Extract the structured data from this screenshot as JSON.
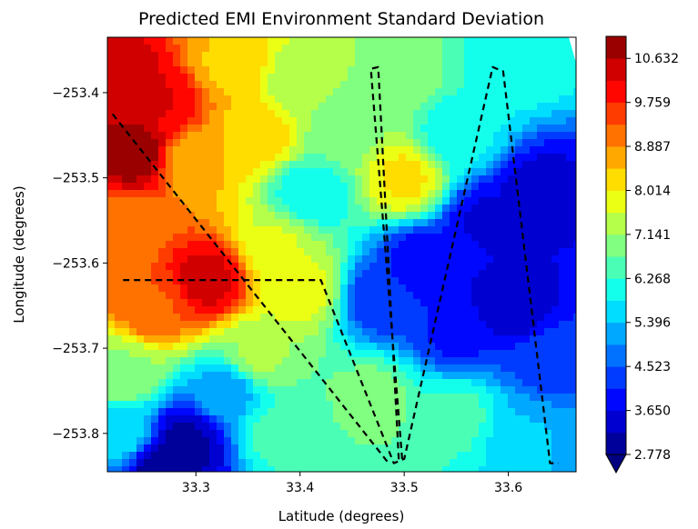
{
  "chart_data": {
    "type": "heatmap",
    "title": "Predicted EMI Environment Standard Deviation",
    "xlabel": "Latitude (degrees)",
    "ylabel": "Longitude (degrees)",
    "xlim": [
      33.215,
      33.665
    ],
    "ylim": [
      -253.845,
      -253.335
    ],
    "x_ticks": [
      {
        "value": 33.3,
        "label": "33.3"
      },
      {
        "value": 33.4,
        "label": "33.4"
      },
      {
        "value": 33.5,
        "label": "33.5"
      },
      {
        "value": 33.6,
        "label": "33.6"
      }
    ],
    "y_ticks": [
      {
        "value": -253.4,
        "label": "−253.4"
      },
      {
        "value": -253.5,
        "label": "−253.5"
      },
      {
        "value": -253.6,
        "label": "−253.6"
      },
      {
        "value": -253.7,
        "label": "−253.7"
      },
      {
        "value": -253.8,
        "label": "−253.8"
      }
    ],
    "colorbar": {
      "min": 2.778,
      "max": 11.069,
      "tick_values": [
        2.778,
        3.65,
        4.523,
        5.396,
        6.268,
        7.141,
        8.014,
        8.887,
        9.759,
        10.632
      ],
      "tick_labels": [
        "2.778",
        "3.650",
        "4.523",
        "5.396",
        "6.268",
        "7.141",
        "8.014",
        "8.887",
        "9.759",
        "10.632"
      ],
      "levels": 19,
      "extend": "min",
      "colormap": "jet"
    },
    "field_sources": [
      {
        "lat": 33.23,
        "lon": -253.39,
        "value": 10.6
      },
      {
        "lat": 33.27,
        "lon": -253.41,
        "value": 10.2
      },
      {
        "lat": 33.24,
        "lon": -253.47,
        "value": 10.9
      },
      {
        "lat": 33.23,
        "lon": -253.56,
        "value": 9.0
      },
      {
        "lat": 33.31,
        "lon": -253.62,
        "value": 10.4
      },
      {
        "lat": 33.26,
        "lon": -253.65,
        "value": 9.3
      },
      {
        "lat": 33.33,
        "lon": -253.37,
        "value": 8.4
      },
      {
        "lat": 33.36,
        "lon": -253.45,
        "value": 8.2
      },
      {
        "lat": 33.38,
        "lon": -253.58,
        "value": 7.6
      },
      {
        "lat": 33.4,
        "lon": -253.63,
        "value": 7.8
      },
      {
        "lat": 33.36,
        "lon": -253.71,
        "value": 7.2
      },
      {
        "lat": 33.41,
        "lon": -253.52,
        "value": 5.9
      },
      {
        "lat": 33.4,
        "lon": -253.39,
        "value": 7.3
      },
      {
        "lat": 33.44,
        "lon": -253.44,
        "value": 6.9
      },
      {
        "lat": 33.49,
        "lon": -253.38,
        "value": 7.1
      },
      {
        "lat": 33.5,
        "lon": -253.5,
        "value": 8.1
      },
      {
        "lat": 33.55,
        "lon": -253.45,
        "value": 6.0
      },
      {
        "lat": 33.6,
        "lon": -253.36,
        "value": 6.2
      },
      {
        "lat": 33.52,
        "lon": -253.6,
        "value": 3.7
      },
      {
        "lat": 33.58,
        "lon": -253.55,
        "value": 3.6
      },
      {
        "lat": 33.63,
        "lon": -253.52,
        "value": 3.4
      },
      {
        "lat": 33.6,
        "lon": -253.65,
        "value": 3.3
      },
      {
        "lat": 33.55,
        "lon": -253.68,
        "value": 4.0
      },
      {
        "lat": 33.48,
        "lon": -253.64,
        "value": 4.2
      },
      {
        "lat": 33.64,
        "lon": -253.72,
        "value": 4.4
      },
      {
        "lat": 33.62,
        "lon": -253.8,
        "value": 5.4
      },
      {
        "lat": 33.55,
        "lon": -253.78,
        "value": 6.4
      },
      {
        "lat": 33.47,
        "lon": -253.76,
        "value": 6.9
      },
      {
        "lat": 33.45,
        "lon": -253.84,
        "value": 6.7
      },
      {
        "lat": 33.38,
        "lon": -253.8,
        "value": 6.4
      },
      {
        "lat": 33.33,
        "lon": -253.75,
        "value": 5.2
      },
      {
        "lat": 33.29,
        "lon": -253.81,
        "value": 3.1
      },
      {
        "lat": 33.27,
        "lon": -253.84,
        "value": 2.9
      },
      {
        "lat": 33.23,
        "lon": -253.8,
        "value": 5.6
      },
      {
        "lat": 33.23,
        "lon": -253.73,
        "value": 7.1
      },
      {
        "lat": 33.3,
        "lon": -253.48,
        "value": 8.5
      }
    ],
    "flight_paths": [
      {
        "name": "",
        "points": [
          [
            33.22,
            -253.425
          ],
          [
            33.485,
            -253.835
          ]
        ]
      },
      {
        "name": "",
        "points": [
          [
            33.23,
            -253.62
          ],
          [
            33.42,
            -253.62
          ],
          [
            33.49,
            -253.835
          ],
          [
            33.5,
            -253.83
          ],
          [
            33.585,
            -253.37
          ],
          [
            33.595,
            -253.375
          ],
          [
            33.64,
            -253.835
          ],
          [
            33.648,
            -253.835
          ]
        ]
      },
      {
        "name": "",
        "points": [
          [
            33.498,
            -253.83
          ],
          [
            33.468,
            -253.372
          ],
          [
            33.475,
            -253.37
          ],
          [
            33.495,
            -253.835
          ]
        ]
      }
    ]
  }
}
